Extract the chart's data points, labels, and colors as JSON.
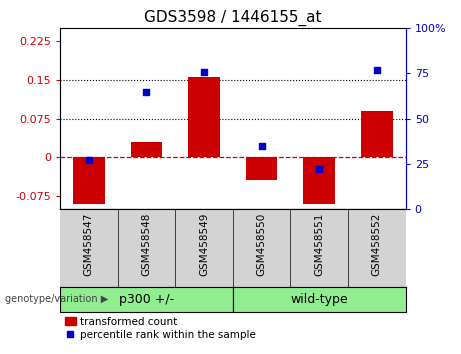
{
  "title": "GDS3598 / 1446155_at",
  "samples": [
    "GSM458547",
    "GSM458548",
    "GSM458549",
    "GSM458550",
    "GSM458551",
    "GSM458552"
  ],
  "bar_values": [
    -0.09,
    0.03,
    0.155,
    -0.045,
    -0.09,
    0.09
  ],
  "scatter_values": [
    27,
    65,
    76,
    35,
    22,
    77
  ],
  "bar_color": "#cc0000",
  "scatter_color": "#0000cc",
  "left_ylim": [
    -0.1,
    0.25
  ],
  "right_ylim": [
    0,
    100
  ],
  "left_yticks": [
    -0.075,
    0,
    0.075,
    0.15,
    0.225
  ],
  "right_yticks": [
    0,
    25,
    50,
    75,
    100
  ],
  "left_ytick_labels": [
    "-0.075",
    "0",
    "0.075",
    "0.15",
    "0.225"
  ],
  "right_ytick_labels": [
    "0",
    "25",
    "50",
    "75",
    "100%"
  ],
  "hline_dotted_vals": [
    0.075,
    0.15
  ],
  "hline_dashed_val": 0.0,
  "groups": [
    {
      "label": "p300 +/-",
      "indices": [
        0,
        1,
        2
      ],
      "color": "#90ee90"
    },
    {
      "label": "wild-type",
      "indices": [
        3,
        4,
        5
      ],
      "color": "#90ee90"
    }
  ],
  "legend_bar_label": "transformed count",
  "legend_scatter_label": "percentile rank within the sample",
  "genotype_label": "genotype/variation",
  "background_xtick": "#d3d3d3",
  "bar_width": 0.55
}
